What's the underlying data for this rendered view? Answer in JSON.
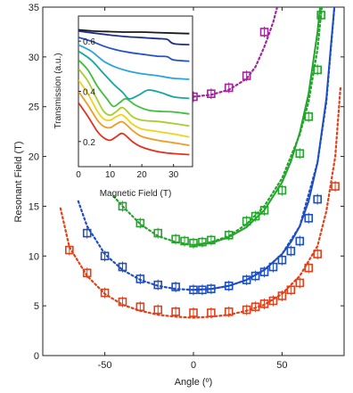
{
  "chart_data": [
    {
      "type": "scatter",
      "title": "",
      "xlabel": "Angle (º)",
      "ylabel": "Resonant Field (T)",
      "xlim": [
        -85,
        85
      ],
      "ylim": [
        0,
        35
      ],
      "xticks": [
        -50,
        0,
        50
      ],
      "yticks": [
        0,
        5,
        10,
        15,
        20,
        25,
        30,
        35
      ],
      "grid": false,
      "legend": "none",
      "series": [
        {
          "color": "#e0401c",
          "points": [
            [
              -70,
              10.6
            ],
            [
              -60,
              8.3
            ],
            [
              -50,
              6.3
            ],
            [
              -40,
              5.4
            ],
            [
              -30,
              4.9
            ],
            [
              -20,
              4.6
            ],
            [
              -10,
              4.4
            ],
            [
              0,
              4.3
            ],
            [
              10,
              4.3
            ],
            [
              20,
              4.4
            ],
            [
              30,
              4.6
            ],
            [
              35,
              4.9
            ],
            [
              40,
              5.2
            ],
            [
              45,
              5.5
            ],
            [
              50,
              6.0
            ],
            [
              55,
              6.6
            ],
            [
              60,
              7.3
            ],
            [
              65,
              8.8
            ],
            [
              70,
              10.2
            ],
            [
              80,
              17.0
            ]
          ],
          "fit_dotted": [
            [
              -75,
              14.8
            ],
            [
              -70,
              10.9
            ],
            [
              -60,
              8.0
            ],
            [
              -50,
              6.2
            ],
            [
              -40,
              5.1
            ],
            [
              -30,
              4.5
            ],
            [
              -20,
              4.1
            ],
            [
              -10,
              3.9
            ],
            [
              0,
              3.8
            ],
            [
              10,
              3.9
            ],
            [
              20,
              4.1
            ],
            [
              30,
              4.5
            ],
            [
              40,
              5.1
            ],
            [
              50,
              6.2
            ],
            [
              60,
              8.0
            ],
            [
              70,
              11.0
            ],
            [
              75,
              14.5
            ],
            [
              80,
              20.0
            ],
            [
              83,
              27.0
            ]
          ]
        },
        {
          "color": "#1d4fc4",
          "points": [
            [
              -60,
              12.3
            ],
            [
              -50,
              10.0
            ],
            [
              -40,
              8.9
            ],
            [
              -30,
              7.7
            ],
            [
              -20,
              7.1
            ],
            [
              -10,
              6.9
            ],
            [
              0,
              6.6
            ],
            [
              5,
              6.6
            ],
            [
              10,
              6.7
            ],
            [
              20,
              7.0
            ],
            [
              30,
              7.6
            ],
            [
              35,
              8.0
            ],
            [
              40,
              8.4
            ],
            [
              45,
              8.9
            ],
            [
              50,
              9.6
            ],
            [
              55,
              10.5
            ],
            [
              60,
              11.5
            ],
            [
              65,
              13.8
            ],
            [
              70,
              15.7
            ]
          ],
          "fit_solid": [
            [
              0,
              6.6
            ],
            [
              10,
              6.7
            ],
            [
              20,
              7.0
            ],
            [
              30,
              7.6
            ],
            [
              40,
              8.6
            ],
            [
              50,
              10.2
            ],
            [
              55,
              11.4
            ],
            [
              60,
              13.0
            ],
            [
              65,
              15.5
            ],
            [
              70,
              19.4
            ],
            [
              75,
              25.8
            ],
            [
              78,
              32.0
            ],
            [
              80,
              36.0
            ]
          ],
          "fit_dotted": [
            [
              -65,
              15.5
            ],
            [
              -60,
              13.0
            ],
            [
              -50,
              10.2
            ],
            [
              -40,
              8.6
            ],
            [
              -30,
              7.6
            ],
            [
              -20,
              7.0
            ],
            [
              -10,
              6.7
            ],
            [
              0,
              6.6
            ],
            [
              10,
              6.7
            ],
            [
              20,
              7.0
            ],
            [
              30,
              7.6
            ],
            [
              40,
              8.6
            ],
            [
              50,
              10.2
            ],
            [
              60,
              13.0
            ],
            [
              70,
              19.4
            ],
            [
              75,
              25.5
            ],
            [
              80,
              36.0
            ]
          ]
        },
        {
          "color": "#22a52a",
          "points": [
            [
              -40,
              15.0
            ],
            [
              -30,
              13.3
            ],
            [
              -20,
              12.3
            ],
            [
              -10,
              11.7
            ],
            [
              -5,
              11.5
            ],
            [
              0,
              11.3
            ],
            [
              5,
              11.4
            ],
            [
              10,
              11.6
            ],
            [
              20,
              12.1
            ],
            [
              30,
              13.5
            ],
            [
              35,
              14.0
            ],
            [
              40,
              14.6
            ],
            [
              50,
              16.6
            ],
            [
              60,
              20.3
            ],
            [
              65,
              24.0
            ],
            [
              70,
              28.7
            ],
            [
              72,
              34.2
            ]
          ],
          "fit_solid": [
            [
              0,
              11.1
            ],
            [
              10,
              11.3
            ],
            [
              20,
              11.9
            ],
            [
              30,
              12.9
            ],
            [
              40,
              14.6
            ],
            [
              50,
              17.4
            ],
            [
              55,
              19.5
            ],
            [
              60,
              22.4
            ],
            [
              65,
              26.3
            ],
            [
              70,
              32.5
            ],
            [
              72,
              36.0
            ]
          ],
          "fit_dotted": [
            [
              -45,
              16.0
            ],
            [
              -40,
              15.0
            ],
            [
              -30,
              13.2
            ],
            [
              -20,
              12.0
            ],
            [
              -10,
              11.4
            ],
            [
              0,
              11.1
            ],
            [
              10,
              11.4
            ],
            [
              20,
              12.0
            ],
            [
              30,
              13.2
            ],
            [
              40,
              15.0
            ],
            [
              50,
              17.8
            ],
            [
              60,
              22.2
            ],
            [
              65,
              25.5
            ],
            [
              70,
              30.8
            ],
            [
              73,
              36.0
            ]
          ]
        },
        {
          "color": "#a0279a",
          "points": [
            [
              0,
              26.0
            ],
            [
              10,
              26.3
            ],
            [
              20,
              26.9
            ],
            [
              30,
              28.1
            ],
            [
              40,
              32.5
            ]
          ],
          "fit_dotted": [
            [
              -5,
              25.9
            ],
            [
              0,
              26.0
            ],
            [
              10,
              26.2
            ],
            [
              20,
              26.7
            ],
            [
              30,
              27.8
            ],
            [
              35,
              29.0
            ],
            [
              40,
              31.0
            ],
            [
              45,
              33.5
            ],
            [
              48,
              35.5
            ]
          ]
        }
      ]
    },
    {
      "type": "line",
      "title": "",
      "xlabel": "Magnetic Field (T)",
      "ylabel": "Transmission (a.u.)",
      "xlim": [
        0,
        36
      ],
      "ylim": [
        0.1,
        0.7
      ],
      "xticks": [
        0,
        10,
        20,
        30
      ],
      "yticks": [
        0.2,
        0.4,
        0.6
      ],
      "series": [
        {
          "color": "#1a1a1a",
          "points": [
            [
              0,
              0.645
            ],
            [
              5,
              0.64
            ],
            [
              10,
              0.638
            ],
            [
              15,
              0.636
            ],
            [
              20,
              0.636
            ],
            [
              25,
              0.634
            ],
            [
              30,
              0.632
            ],
            [
              35,
              0.63
            ]
          ]
        },
        {
          "color": "#1f2e8c",
          "points": [
            [
              0,
              0.64
            ],
            [
              5,
              0.632
            ],
            [
              10,
              0.624
            ],
            [
              15,
              0.618
            ],
            [
              20,
              0.614
            ],
            [
              25,
              0.61
            ],
            [
              28,
              0.607
            ],
            [
              30,
              0.59
            ],
            [
              35,
              0.586
            ]
          ]
        },
        {
          "color": "#2353c8",
          "points": [
            [
              0,
              0.615
            ],
            [
              4,
              0.6
            ],
            [
              8,
              0.58
            ],
            [
              12,
              0.565
            ],
            [
              16,
              0.555
            ],
            [
              20,
              0.548
            ],
            [
              25,
              0.54
            ],
            [
              28,
              0.538
            ],
            [
              30,
              0.525
            ],
            [
              35,
              0.52
            ]
          ]
        },
        {
          "color": "#2aa3e0",
          "points": [
            [
              0,
              0.585
            ],
            [
              4,
              0.56
            ],
            [
              8,
              0.52
            ],
            [
              12,
              0.495
            ],
            [
              16,
              0.48
            ],
            [
              20,
              0.47
            ],
            [
              25,
              0.462
            ],
            [
              30,
              0.452
            ],
            [
              35,
              0.448
            ]
          ]
        },
        {
          "color": "#1aa6a0",
          "points": [
            [
              0,
              0.56
            ],
            [
              4,
              0.525
            ],
            [
              8,
              0.47
            ],
            [
              11,
              0.43
            ],
            [
              14,
              0.395
            ],
            [
              16,
              0.37
            ],
            [
              19,
              0.385
            ],
            [
              22,
              0.405
            ],
            [
              26,
              0.395
            ],
            [
              30,
              0.378
            ],
            [
              35,
              0.372
            ]
          ]
        },
        {
          "color": "#3ebf3e",
          "points": [
            [
              0,
              0.525
            ],
            [
              3,
              0.485
            ],
            [
              6,
              0.42
            ],
            [
              9,
              0.37
            ],
            [
              11,
              0.34
            ],
            [
              13,
              0.355
            ],
            [
              15,
              0.37
            ],
            [
              18,
              0.345
            ],
            [
              22,
              0.325
            ],
            [
              26,
              0.32
            ],
            [
              30,
              0.318
            ],
            [
              35,
              0.31
            ]
          ]
        },
        {
          "color": "#a6cf2a",
          "points": [
            [
              0,
              0.49
            ],
            [
              3,
              0.44
            ],
            [
              6,
              0.365
            ],
            [
              8,
              0.32
            ],
            [
              10,
              0.305
            ],
            [
              12,
              0.32
            ],
            [
              14,
              0.335
            ],
            [
              17,
              0.3
            ],
            [
              20,
              0.285
            ],
            [
              25,
              0.28
            ],
            [
              30,
              0.272
            ],
            [
              35,
              0.262
            ]
          ]
        },
        {
          "color": "#f2d11a",
          "points": [
            [
              0,
              0.445
            ],
            [
              3,
              0.39
            ],
            [
              6,
              0.32
            ],
            [
              8,
              0.29
            ],
            [
              10,
              0.285
            ],
            [
              12,
              0.3
            ],
            [
              14,
              0.305
            ],
            [
              17,
              0.27
            ],
            [
              20,
              0.25
            ],
            [
              25,
              0.24
            ],
            [
              30,
              0.23
            ],
            [
              35,
              0.218
            ]
          ]
        },
        {
          "color": "#f09a22",
          "points": [
            [
              0,
              0.4
            ],
            [
              3,
              0.345
            ],
            [
              6,
              0.285
            ],
            [
              8,
              0.26
            ],
            [
              10,
              0.255
            ],
            [
              12,
              0.27
            ],
            [
              14,
              0.278
            ],
            [
              17,
              0.245
            ],
            [
              20,
              0.22
            ],
            [
              25,
              0.205
            ],
            [
              30,
              0.195
            ],
            [
              35,
              0.185
            ]
          ]
        },
        {
          "color": "#e2321c",
          "points": [
            [
              0,
              0.355
            ],
            [
              3,
              0.3
            ],
            [
              6,
              0.24
            ],
            [
              8,
              0.215
            ],
            [
              10,
              0.205
            ],
            [
              12,
              0.22
            ],
            [
              14,
              0.232
            ],
            [
              17,
              0.2
            ],
            [
              20,
              0.178
            ],
            [
              25,
              0.16
            ],
            [
              30,
              0.152
            ],
            [
              35,
              0.148
            ]
          ]
        }
      ]
    }
  ]
}
